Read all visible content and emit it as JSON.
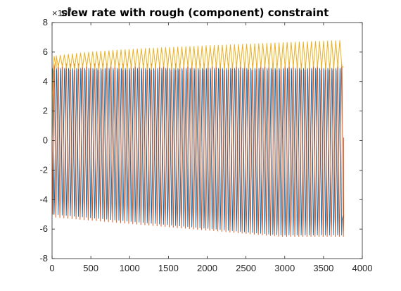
{
  "chart_data": {
    "type": "line",
    "title": "slew rate with rough (component) constraint",
    "xlabel": "",
    "ylabel": "",
    "y_multiplier_label": "×10",
    "y_multiplier_exponent": "9",
    "xlim": [
      0,
      4000
    ],
    "ylim": [
      -8,
      8
    ],
    "x_ticks": [
      0,
      500,
      1000,
      1500,
      2000,
      2500,
      3000,
      3500,
      4000
    ],
    "y_ticks": [
      -8,
      -6,
      -4,
      -2,
      0,
      2,
      4,
      6,
      8
    ],
    "grid": false,
    "legend": "none",
    "x_end": 3760,
    "num_cycles": 72,
    "series": [
      {
        "color": "#edb120",
        "description_values": {
          "upper_start": 5.0,
          "upper_peak_start": 5.7,
          "upper_peak_end": 6.8,
          "lower": 4.9
        }
      },
      {
        "color": "#d95319",
        "description_values": {
          "upper": 5.2,
          "lower_start": -5.2,
          "lower_end": -6.5,
          "end_value": 0.2
        }
      },
      {
        "color": "#0072bd",
        "description_values": {
          "upper": 4.9,
          "lower_start": -5.0,
          "lower_end": -6.4,
          "end_value": -4.9
        }
      }
    ],
    "colors": {
      "axes": "#262626",
      "background": "#ffffff"
    }
  }
}
